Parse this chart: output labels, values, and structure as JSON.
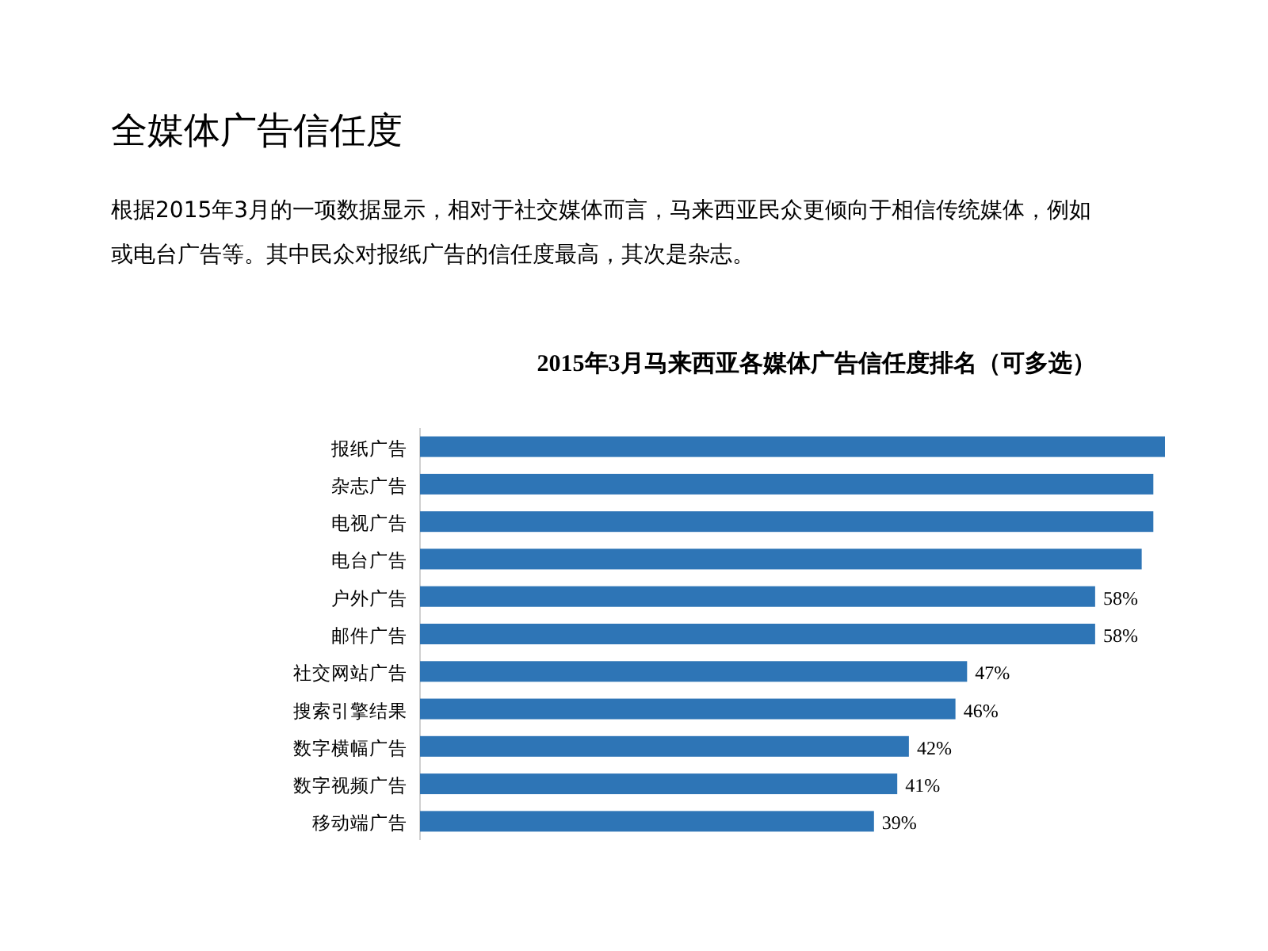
{
  "chart_data": {
    "type": "bar",
    "orientation": "horizontal",
    "title": "2015年3月马来西亚各媒体广告信任度排名（可多选）",
    "annotations": [
      "全媒体广告信任度",
      "根据2015年3月的一项数据显示，相对于社交媒体而言，马来西亚民众更倾向于相信传统媒体，例如",
      "或电台广告等。其中民众对报纸广告的信任度最高，其次是杂志。"
    ],
    "categories": [
      "报纸广告",
      "杂志广告",
      "电视广告",
      "电台广告",
      "户外广告",
      "邮件广告",
      "社交网站广告",
      "搜索引擎结果",
      "数字横幅广告",
      "数字视频广告",
      "移动端广告"
    ],
    "values": [
      64,
      63,
      63,
      62,
      58,
      58,
      47,
      46,
      42,
      41,
      39
    ],
    "value_labels": [
      null,
      null,
      null,
      null,
      "58%",
      "58%",
      "47%",
      "46%",
      "42%",
      "41%",
      "39%"
    ],
    "color": "#2e75b6"
  }
}
